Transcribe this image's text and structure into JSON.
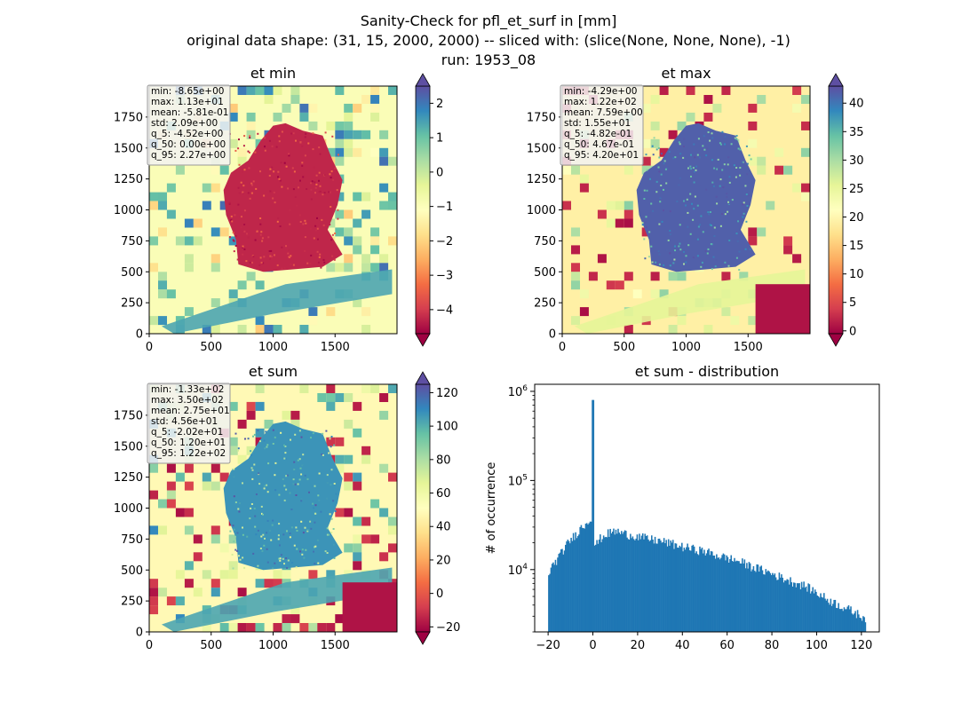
{
  "suptitle": {
    "line1": "Sanity-Check for pfl_et_surf in [mm]",
    "line2": "original data shape: (31, 15, 2000, 2000) -- sliced with: (slice(None, None, None), -1)",
    "line3": "run: 1953_08"
  },
  "chart_data": [
    {
      "type": "heatmap",
      "title": "et min",
      "xticks": [
        "0",
        "500",
        "1000",
        "1500"
      ],
      "yticks": [
        "0",
        "250",
        "500",
        "750",
        "1000",
        "1250",
        "1500",
        "1750"
      ],
      "xlim": [
        0,
        2000
      ],
      "ylim": [
        0,
        2000
      ],
      "colorbar": {
        "colormap": "Spectral",
        "extend": "both",
        "vmin": -4.7,
        "vmax": 2.5,
        "ticks": [
          "2",
          "1",
          "0",
          "−1",
          "−2",
          "−3",
          "−4"
        ],
        "tick_values": [
          2,
          1,
          0,
          -1,
          -2,
          -3,
          -4
        ]
      },
      "stats": [
        "min: -8.65e+00",
        "max: 1.13e+01",
        "mean: -5.81e-01",
        "std: 2.09e+00",
        "q_5: -4.52e+00",
        "q_50: 0.00e+00",
        "q_95: 2.27e+00"
      ]
    },
    {
      "type": "heatmap",
      "title": "et max",
      "xticks": [
        "0",
        "500",
        "1000",
        "1500"
      ],
      "yticks": [
        "0",
        "250",
        "500",
        "750",
        "1000",
        "1250",
        "1500",
        "1750"
      ],
      "xlim": [
        0,
        2000
      ],
      "ylim": [
        0,
        2000
      ],
      "colorbar": {
        "colormap": "Spectral",
        "extend": "both",
        "vmin": -0.5,
        "vmax": 43,
        "ticks": [
          "40",
          "35",
          "30",
          "25",
          "20",
          "15",
          "10",
          "5",
          "0"
        ],
        "tick_values": [
          40,
          35,
          30,
          25,
          20,
          15,
          10,
          5,
          0
        ]
      },
      "stats": [
        "min: -4.29e+00",
        "max: 1.22e+02",
        "mean: 7.59e+00",
        "std: 1.55e+01",
        "q_5: -4.82e-01",
        "q_50: 4.67e-01",
        "q_95: 4.20e+01"
      ]
    },
    {
      "type": "heatmap",
      "title": "et sum",
      "xticks": [
        "0",
        "500",
        "1000",
        "1500"
      ],
      "yticks": [
        "0",
        "250",
        "500",
        "750",
        "1000",
        "1250",
        "1500",
        "1750"
      ],
      "xlim": [
        0,
        2000
      ],
      "ylim": [
        0,
        2000
      ],
      "colorbar": {
        "colormap": "Spectral",
        "extend": "both",
        "vmin": -23,
        "vmax": 125,
        "ticks": [
          "120",
          "100",
          "80",
          "60",
          "40",
          "20",
          "0",
          "−20"
        ],
        "tick_values": [
          120,
          100,
          80,
          60,
          40,
          20,
          0,
          -20
        ]
      },
      "stats": [
        "min: -1.33e+02",
        "max: 3.50e+02",
        "mean: 2.75e+01",
        "std: 4.56e+01",
        "q_5: -2.02e+01",
        "q_50: 1.20e+01",
        "q_95: 1.22e+02"
      ]
    },
    {
      "type": "bar",
      "title": "et sum - distribution",
      "ylabel": "# of occurrence",
      "xlabel": "",
      "yscale": "log",
      "xlim": [
        -26,
        128
      ],
      "ylim": [
        2000,
        1200000
      ],
      "xticks": [
        "−20",
        "0",
        "20",
        "40",
        "60",
        "80",
        "100",
        "120"
      ],
      "xtick_values": [
        -20,
        0,
        20,
        40,
        60,
        80,
        100,
        120
      ],
      "ytick_exponents": [
        "6",
        "5",
        "4"
      ],
      "ytick_values": [
        1000000,
        100000,
        10000
      ],
      "color": "#1f77b4",
      "x_range": [
        -20,
        122
      ],
      "peak": {
        "x": 0,
        "y": 800000
      },
      "profile_x": [
        -20,
        -19,
        -17,
        -15,
        -13,
        -11,
        -9,
        -7,
        -5,
        -3,
        -1,
        -0.5,
        0.5,
        1,
        3,
        6,
        10,
        15,
        20,
        25,
        30,
        35,
        40,
        45,
        50,
        55,
        60,
        65,
        70,
        75,
        80,
        85,
        90,
        95,
        100,
        105,
        110,
        115,
        120,
        122
      ],
      "profile_y": [
        9000,
        10000,
        12000,
        14000,
        17000,
        20000,
        23000,
        26000,
        30000,
        33000,
        38000,
        40000,
        21000,
        18000,
        22000,
        25000,
        27000,
        25000,
        23500,
        22000,
        21000,
        19500,
        18000,
        17000,
        16000,
        14500,
        13500,
        12500,
        11000,
        10000,
        9000,
        8000,
        7200,
        6500,
        5500,
        4600,
        4000,
        3500,
        3000,
        2900
      ]
    }
  ]
}
